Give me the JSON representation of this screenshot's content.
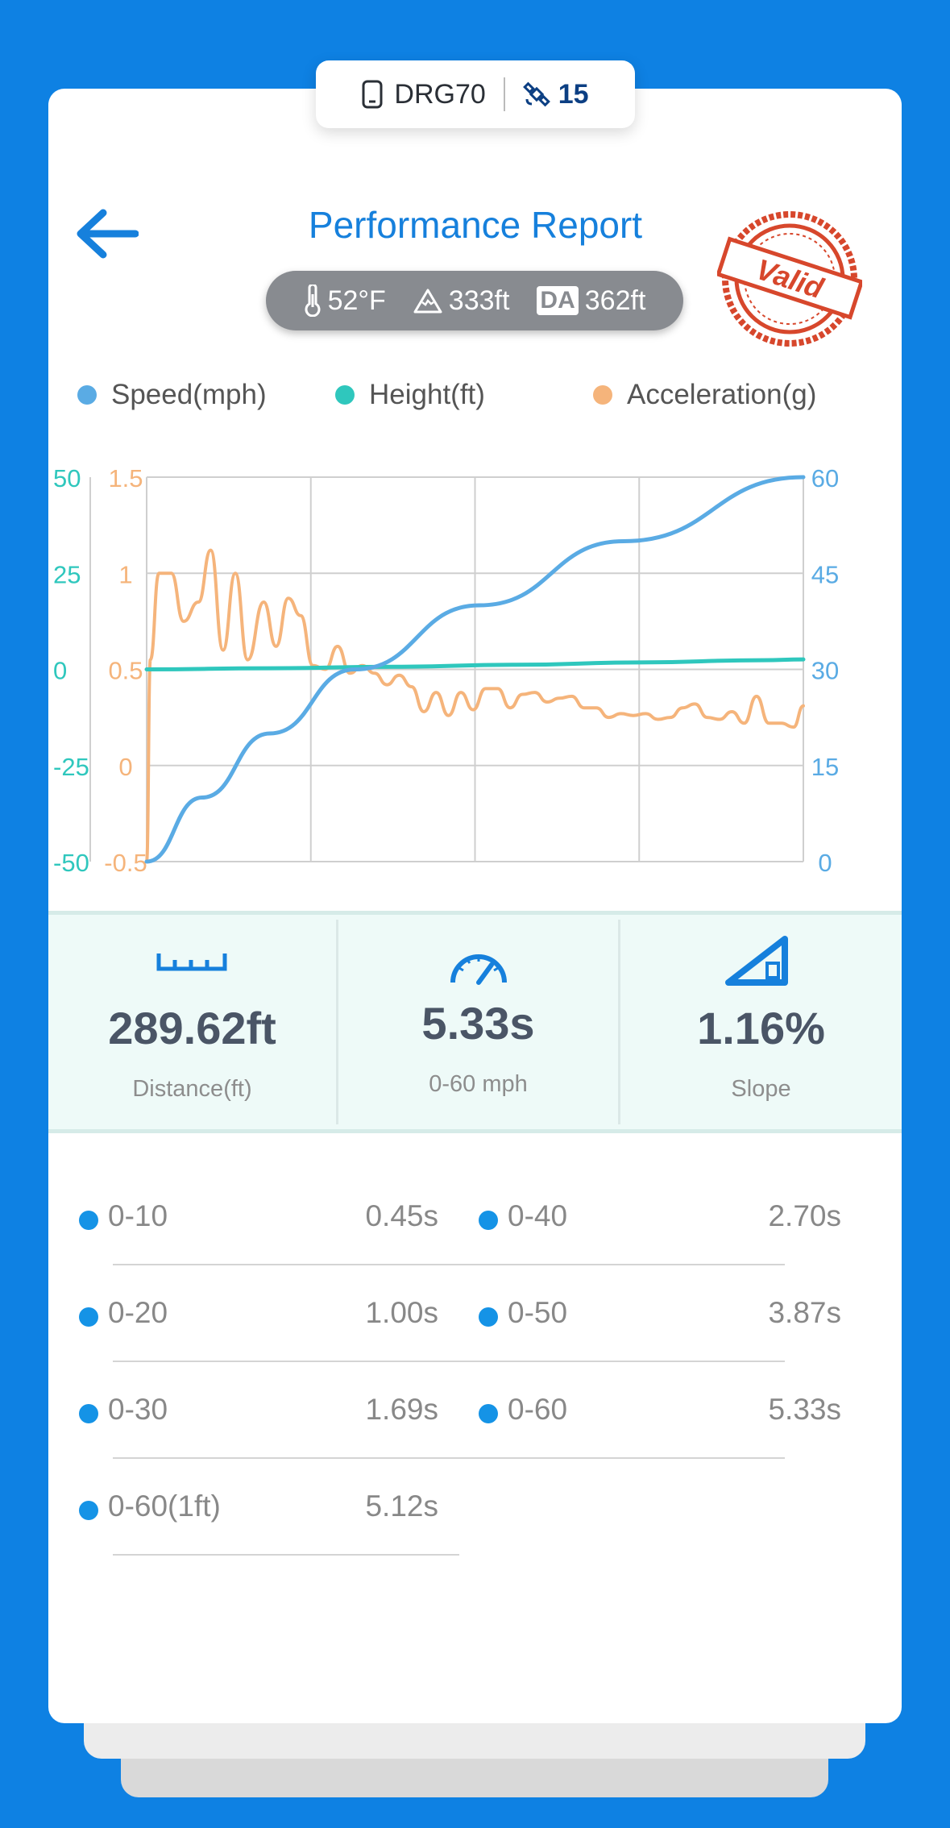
{
  "device": {
    "name": "DRG70",
    "icon": "phone-icon",
    "satellites": "15",
    "satellite_icon": "satellite-icon"
  },
  "header": {
    "title": "Performance Report",
    "back_icon": "back-arrow-icon",
    "stamp_text": "Valid"
  },
  "conditions": {
    "temperature": "52°F",
    "altitude": "333ft",
    "da_badge": "DA",
    "density_altitude": "362ft"
  },
  "legend": [
    {
      "label": "Speed(mph)",
      "color": "#5aabe4"
    },
    {
      "label": "Height(ft)",
      "color": "#2fc7bd"
    },
    {
      "label": "Acceleration(g)",
      "color": "#f5b47b"
    }
  ],
  "chart_data": {
    "type": "line",
    "height_axis": {
      "ticks": [
        "50",
        "25",
        "0",
        "-25",
        "-50"
      ],
      "range": [
        -50,
        50
      ],
      "color": "#2fc7bd"
    },
    "accel_axis": {
      "ticks": [
        "1.5",
        "1",
        "0.5",
        "0",
        "-0.5"
      ],
      "range": [
        -0.5,
        1.5
      ],
      "color": "#f5b47b"
    },
    "speed_axis": {
      "ticks": [
        "60",
        "45",
        "30",
        "15",
        "0"
      ],
      "range": [
        0,
        60
      ],
      "color": "#5aabe4"
    },
    "x_range": [
      0,
      5.33
    ],
    "grid": true,
    "series": [
      {
        "name": "Speed(mph)",
        "axis": "right",
        "color": "#5aabe4",
        "x": [
          0,
          0.45,
          1.0,
          1.69,
          2.7,
          3.87,
          5.33
        ],
        "y": [
          0,
          10,
          20,
          30,
          40,
          50,
          60
        ]
      },
      {
        "name": "Height(ft)",
        "axis": "left",
        "color": "#2fc7bd",
        "x": [
          0,
          1,
          2,
          3,
          4,
          5,
          5.33
        ],
        "y": [
          0,
          0.3,
          0.7,
          1.2,
          1.8,
          2.4,
          2.6
        ]
      },
      {
        "name": "Acceleration(g)",
        "axis": "left2",
        "color": "#f5b47b",
        "x": [
          0,
          0.03,
          0.1,
          0.2,
          0.3,
          0.42,
          0.52,
          0.62,
          0.72,
          0.82,
          0.95,
          1.05,
          1.15,
          1.25,
          1.35,
          1.45,
          1.55,
          1.65,
          1.75,
          1.85,
          1.95,
          2.05,
          2.15,
          2.25,
          2.35,
          2.45,
          2.55,
          2.65,
          2.75,
          2.85,
          2.95,
          3.05,
          3.15,
          3.25,
          3.35,
          3.45,
          3.55,
          3.65,
          3.75,
          3.85,
          3.95,
          4.05,
          4.15,
          4.25,
          4.35,
          4.45,
          4.55,
          4.65,
          4.75,
          4.85,
          4.95,
          5.05,
          5.15,
          5.25,
          5.33
        ],
        "y": [
          -0.5,
          0.55,
          1.0,
          1.0,
          0.75,
          0.85,
          1.12,
          0.6,
          1.0,
          0.55,
          0.85,
          0.62,
          0.87,
          0.78,
          0.52,
          0.5,
          0.62,
          0.48,
          0.52,
          0.48,
          0.42,
          0.47,
          0.41,
          0.28,
          0.38,
          0.26,
          0.38,
          0.29,
          0.4,
          0.4,
          0.3,
          0.37,
          0.38,
          0.33,
          0.35,
          0.36,
          0.3,
          0.3,
          0.25,
          0.27,
          0.26,
          0.27,
          0.24,
          0.25,
          0.3,
          0.32,
          0.25,
          0.24,
          0.28,
          0.22,
          0.36,
          0.22,
          0.22,
          0.2,
          0.31
        ]
      }
    ]
  },
  "stats": [
    {
      "icon": "ruler-icon",
      "value": "289.62ft",
      "label": "Distance(ft)"
    },
    {
      "icon": "speedometer-icon",
      "value": "5.33s",
      "label": "0-60 mph"
    },
    {
      "icon": "slope-icon",
      "value": "1.16%",
      "label": "Slope"
    }
  ],
  "splits": {
    "left": [
      {
        "label": "0-10",
        "time": "0.45s"
      },
      {
        "label": "0-20",
        "time": "1.00s"
      },
      {
        "label": "0-30",
        "time": "1.69s"
      },
      {
        "label": "0-60(1ft)",
        "time": "5.12s"
      }
    ],
    "right": [
      {
        "label": "0-40",
        "time": "2.70s"
      },
      {
        "label": "0-50",
        "time": "3.87s"
      },
      {
        "label": "0-60",
        "time": "5.33s"
      }
    ]
  },
  "colors": {
    "background": "#0e81e3",
    "accent": "#1680dc",
    "bullet": "#1593e6",
    "stamp": "#d7472c"
  }
}
